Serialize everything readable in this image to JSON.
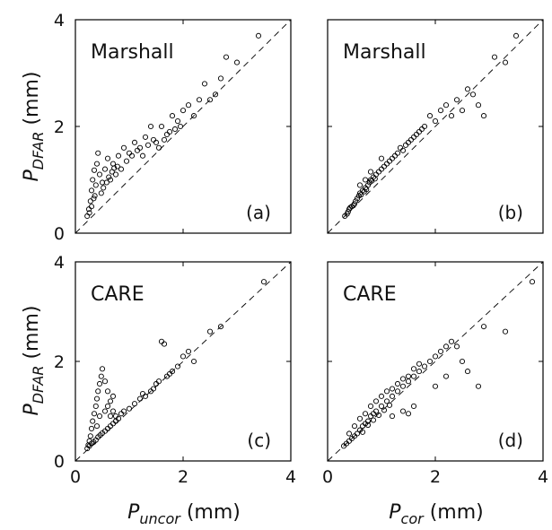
{
  "figure": {
    "ylabel": {
      "base": "P",
      "sub": "DFAR",
      "unit": " (mm)"
    },
    "xlabels": [
      {
        "base": "P",
        "sub": "uncor",
        "unit": " (mm)"
      },
      {
        "base": "P",
        "sub": "cor",
        "unit": " (mm)"
      }
    ],
    "ticks": [
      "0",
      "2",
      "4"
    ]
  },
  "chart_data": [
    {
      "type": "scatter",
      "panel": "(a)",
      "dataset": "Marshall",
      "xlabel": "P_uncor (mm)",
      "ylabel": "P_DFAR (mm)",
      "xlim": [
        0,
        4
      ],
      "ylim": [
        0,
        4
      ],
      "reference_line": "1:1 dashed",
      "points": [
        [
          0.22,
          0.32
        ],
        [
          0.25,
          0.45
        ],
        [
          0.28,
          0.6
        ],
        [
          0.3,
          0.8
        ],
        [
          0.32,
          1.0
        ],
        [
          0.35,
          1.18
        ],
        [
          0.38,
          0.9
        ],
        [
          0.4,
          1.3
        ],
        [
          0.42,
          1.5
        ],
        [
          0.45,
          1.1
        ],
        [
          0.5,
          0.95
        ],
        [
          0.55,
          1.2
        ],
        [
          0.6,
          1.4
        ],
        [
          0.65,
          1.0
        ],
        [
          0.7,
          1.3
        ],
        [
          0.75,
          1.1
        ],
        [
          0.8,
          1.45
        ],
        [
          0.85,
          1.2
        ],
        [
          0.9,
          1.6
        ],
        [
          1.0,
          1.5
        ],
        [
          1.1,
          1.7
        ],
        [
          1.2,
          1.6
        ],
        [
          1.3,
          1.8
        ],
        [
          1.4,
          2.0
        ],
        [
          1.5,
          1.7
        ],
        [
          1.6,
          2.0
        ],
        [
          1.7,
          1.85
        ],
        [
          1.8,
          2.2
        ],
        [
          1.9,
          2.1
        ],
        [
          2.0,
          2.3
        ],
        [
          2.1,
          2.4
        ],
        [
          2.2,
          2.2
        ],
        [
          2.3,
          2.5
        ],
        [
          2.5,
          2.5
        ],
        [
          2.6,
          2.6
        ],
        [
          2.8,
          3.3
        ],
        [
          3.0,
          3.2
        ],
        [
          3.4,
          3.7
        ],
        [
          0.26,
          0.38
        ],
        [
          0.3,
          0.5
        ],
        [
          0.34,
          0.65
        ],
        [
          0.36,
          0.7
        ],
        [
          0.48,
          0.75
        ],
        [
          0.52,
          0.85
        ],
        [
          0.58,
          0.95
        ],
        [
          0.62,
          1.05
        ],
        [
          0.68,
          1.15
        ],
        [
          0.72,
          1.22
        ],
        [
          0.78,
          1.25
        ],
        [
          0.95,
          1.35
        ],
        [
          1.05,
          1.45
        ],
        [
          1.15,
          1.55
        ],
        [
          1.25,
          1.45
        ],
        [
          1.35,
          1.65
        ],
        [
          1.45,
          1.75
        ],
        [
          1.55,
          1.6
        ],
        [
          1.65,
          1.75
        ],
        [
          1.75,
          1.9
        ],
        [
          1.85,
          1.95
        ],
        [
          1.95,
          2.0
        ],
        [
          2.4,
          2.8
        ],
        [
          2.7,
          2.9
        ]
      ]
    },
    {
      "type": "scatter",
      "panel": "(b)",
      "dataset": "Marshall",
      "xlabel": "P_cor (mm)",
      "ylabel": "P_DFAR (mm)",
      "xlim": [
        0,
        4
      ],
      "ylim": [
        0,
        4
      ],
      "reference_line": "1:1 dashed",
      "points": [
        [
          0.32,
          0.32
        ],
        [
          0.36,
          0.36
        ],
        [
          0.4,
          0.45
        ],
        [
          0.45,
          0.5
        ],
        [
          0.5,
          0.55
        ],
        [
          0.55,
          0.65
        ],
        [
          0.6,
          0.75
        ],
        [
          0.65,
          0.8
        ],
        [
          0.7,
          0.85
        ],
        [
          0.75,
          0.9
        ],
        [
          0.8,
          1.0
        ],
        [
          0.85,
          1.05
        ],
        [
          0.9,
          1.1
        ],
        [
          1.0,
          1.2
        ],
        [
          1.1,
          1.3
        ],
        [
          1.2,
          1.4
        ],
        [
          1.3,
          1.5
        ],
        [
          1.4,
          1.55
        ],
        [
          1.5,
          1.7
        ],
        [
          1.6,
          1.8
        ],
        [
          1.7,
          1.9
        ],
        [
          1.8,
          2.0
        ],
        [
          1.9,
          2.2
        ],
        [
          2.0,
          2.1
        ],
        [
          2.1,
          2.3
        ],
        [
          2.2,
          2.4
        ],
        [
          2.3,
          2.2
        ],
        [
          2.4,
          2.5
        ],
        [
          2.5,
          2.3
        ],
        [
          2.6,
          2.7
        ],
        [
          2.7,
          2.6
        ],
        [
          2.8,
          2.4
        ],
        [
          2.9,
          2.2
        ],
        [
          3.1,
          3.3
        ],
        [
          3.3,
          3.2
        ],
        [
          3.5,
          3.7
        ],
        [
          0.38,
          0.4
        ],
        [
          0.42,
          0.48
        ],
        [
          0.48,
          0.52
        ],
        [
          0.52,
          0.6
        ],
        [
          0.58,
          0.7
        ],
        [
          0.62,
          0.72
        ],
        [
          0.68,
          0.78
        ],
        [
          0.72,
          0.82
        ],
        [
          0.78,
          0.95
        ],
        [
          0.82,
          0.98
        ],
        [
          0.88,
          1.02
        ],
        [
          0.95,
          1.15
        ],
        [
          1.05,
          1.25
        ],
        [
          1.15,
          1.35
        ],
        [
          1.25,
          1.45
        ],
        [
          1.35,
          1.6
        ],
        [
          1.45,
          1.65
        ],
        [
          1.55,
          1.75
        ],
        [
          1.65,
          1.85
        ],
        [
          1.75,
          1.95
        ],
        [
          0.6,
          0.9
        ],
        [
          0.7,
          1.0
        ],
        [
          0.8,
          1.15
        ],
        [
          1.0,
          1.4
        ]
      ]
    },
    {
      "type": "scatter",
      "panel": "(c)",
      "dataset": "CARE",
      "xlabel": "P_uncor (mm)",
      "ylabel": "P_DFAR (mm)",
      "xlim": [
        0,
        4
      ],
      "ylim": [
        0,
        4
      ],
      "reference_line": "1:1 dashed",
      "points": [
        [
          0.22,
          0.25
        ],
        [
          0.24,
          0.32
        ],
        [
          0.26,
          0.4
        ],
        [
          0.28,
          0.5
        ],
        [
          0.3,
          0.65
        ],
        [
          0.32,
          0.8
        ],
        [
          0.35,
          0.95
        ],
        [
          0.38,
          1.1
        ],
        [
          0.4,
          1.25
        ],
        [
          0.42,
          1.4
        ],
        [
          0.45,
          1.55
        ],
        [
          0.48,
          1.7
        ],
        [
          0.5,
          1.85
        ],
        [
          0.55,
          1.6
        ],
        [
          0.6,
          1.4
        ],
        [
          0.65,
          1.2
        ],
        [
          0.7,
          1.0
        ],
        [
          0.75,
          0.9
        ],
        [
          0.8,
          0.85
        ],
        [
          0.85,
          0.95
        ],
        [
          0.9,
          1.0
        ],
        [
          1.0,
          1.05
        ],
        [
          1.1,
          1.15
        ],
        [
          1.2,
          1.25
        ],
        [
          1.3,
          1.3
        ],
        [
          1.4,
          1.4
        ],
        [
          1.5,
          1.55
        ],
        [
          1.6,
          2.4
        ],
        [
          1.65,
          2.35
        ],
        [
          1.7,
          1.7
        ],
        [
          1.8,
          1.8
        ],
        [
          1.9,
          1.9
        ],
        [
          2.0,
          2.1
        ],
        [
          2.1,
          2.2
        ],
        [
          2.2,
          2.0
        ],
        [
          2.5,
          2.6
        ],
        [
          2.7,
          2.7
        ],
        [
          3.5,
          3.6
        ],
        [
          0.26,
          0.3
        ],
        [
          0.3,
          0.35
        ],
        [
          0.34,
          0.38
        ],
        [
          0.38,
          0.42
        ],
        [
          0.42,
          0.48
        ],
        [
          0.46,
          0.52
        ],
        [
          0.5,
          0.56
        ],
        [
          0.55,
          0.6
        ],
        [
          0.6,
          0.65
        ],
        [
          0.65,
          0.7
        ],
        [
          0.7,
          0.75
        ],
        [
          0.75,
          0.8
        ],
        [
          0.55,
          1.0
        ],
        [
          0.6,
          1.1
        ],
        [
          0.65,
          0.9
        ],
        [
          0.7,
          1.3
        ],
        [
          0.4,
          0.7
        ],
        [
          0.45,
          0.9
        ],
        [
          1.25,
          1.35
        ],
        [
          1.45,
          1.45
        ],
        [
          1.55,
          1.6
        ],
        [
          1.75,
          1.75
        ]
      ]
    },
    {
      "type": "scatter",
      "panel": "(d)",
      "dataset": "CARE",
      "xlabel": "P_cor (mm)",
      "ylabel": "P_DFAR (mm)",
      "xlim": [
        0,
        4
      ],
      "ylim": [
        0,
        4
      ],
      "reference_line": "1:1 dashed",
      "points": [
        [
          0.3,
          0.3
        ],
        [
          0.35,
          0.35
        ],
        [
          0.4,
          0.4
        ],
        [
          0.45,
          0.45
        ],
        [
          0.5,
          0.5
        ],
        [
          0.55,
          0.55
        ],
        [
          0.6,
          0.62
        ],
        [
          0.65,
          0.7
        ],
        [
          0.7,
          0.75
        ],
        [
          0.75,
          0.8
        ],
        [
          0.8,
          0.9
        ],
        [
          0.85,
          0.95
        ],
        [
          0.9,
          1.0
        ],
        [
          1.0,
          1.1
        ],
        [
          1.1,
          1.2
        ],
        [
          1.2,
          1.3
        ],
        [
          1.3,
          1.4
        ],
        [
          1.4,
          1.5
        ],
        [
          1.5,
          1.6
        ],
        [
          1.6,
          1.7
        ],
        [
          1.7,
          1.8
        ],
        [
          1.8,
          1.9
        ],
        [
          1.9,
          2.0
        ],
        [
          2.0,
          2.1
        ],
        [
          2.1,
          2.2
        ],
        [
          2.2,
          2.3
        ],
        [
          2.3,
          2.4
        ],
        [
          2.4,
          2.3
        ],
        [
          2.5,
          2.0
        ],
        [
          2.6,
          1.8
        ],
        [
          2.8,
          1.5
        ],
        [
          2.9,
          2.7
        ],
        [
          3.3,
          2.6
        ],
        [
          3.8,
          3.6
        ],
        [
          0.4,
          0.55
        ],
        [
          0.5,
          0.7
        ],
        [
          0.6,
          0.85
        ],
        [
          0.7,
          0.95
        ],
        [
          0.8,
          1.1
        ],
        [
          0.9,
          1.2
        ],
        [
          1.0,
          1.3
        ],
        [
          1.1,
          1.4
        ],
        [
          1.2,
          1.45
        ],
        [
          1.3,
          1.55
        ],
        [
          1.4,
          1.65
        ],
        [
          1.5,
          1.7
        ],
        [
          1.6,
          1.85
        ],
        [
          1.7,
          1.95
        ],
        [
          1.2,
          0.9
        ],
        [
          1.4,
          1.0
        ],
        [
          1.6,
          1.1
        ],
        [
          1.5,
          0.95
        ],
        [
          2.0,
          1.5
        ],
        [
          2.2,
          1.7
        ],
        [
          0.65,
          0.58
        ],
        [
          0.75,
          0.72
        ],
        [
          0.85,
          0.82
        ],
        [
          0.95,
          0.92
        ],
        [
          1.05,
          1.02
        ],
        [
          1.15,
          1.12
        ]
      ]
    }
  ]
}
